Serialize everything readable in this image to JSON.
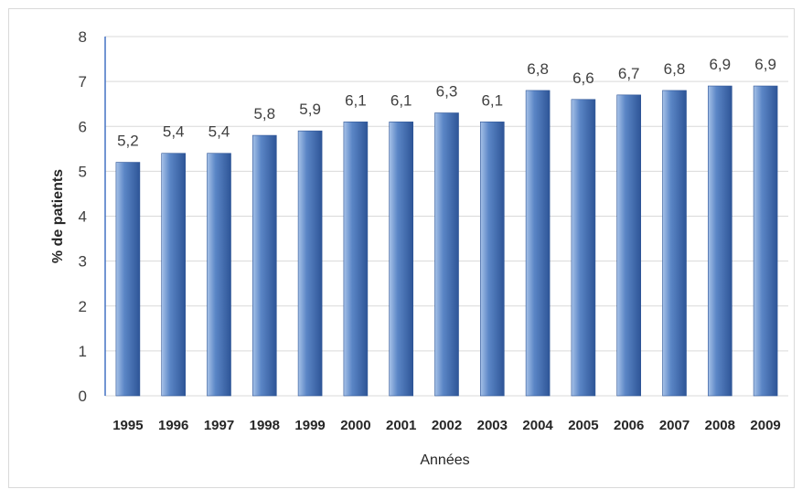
{
  "chart_data": {
    "type": "bar",
    "categories": [
      "1995",
      "1996",
      "1997",
      "1998",
      "1999",
      "2000",
      "2001",
      "2002",
      "2003",
      "2004",
      "2005",
      "2006",
      "2007",
      "2008",
      "2009"
    ],
    "values": [
      5.2,
      5.4,
      5.4,
      5.8,
      5.9,
      6.1,
      6.1,
      6.3,
      6.1,
      6.8,
      6.6,
      6.7,
      6.8,
      6.9,
      6.9
    ],
    "data_labels": [
      "5,2",
      "5,4",
      "5,4",
      "5,8",
      "5,9",
      "6,1",
      "6,1",
      "6,3",
      "6,1",
      "6,8",
      "6,6",
      "6,7",
      "6,8",
      "6,9",
      "6,9"
    ],
    "title": "",
    "xlabel": "Années",
    "ylabel": "% de patients",
    "ylim": [
      0,
      8
    ],
    "yticks": [
      "0",
      "1",
      "2",
      "3",
      "4",
      "5",
      "6",
      "7",
      "8"
    ],
    "grid": true,
    "legend": "none",
    "colors": {
      "bar_light": "#a7c2e8",
      "bar_mid": "#5b86c6",
      "bar_dark": "#2e5597",
      "grid": "#d9d9d9",
      "axis": "#4472c4"
    }
  }
}
